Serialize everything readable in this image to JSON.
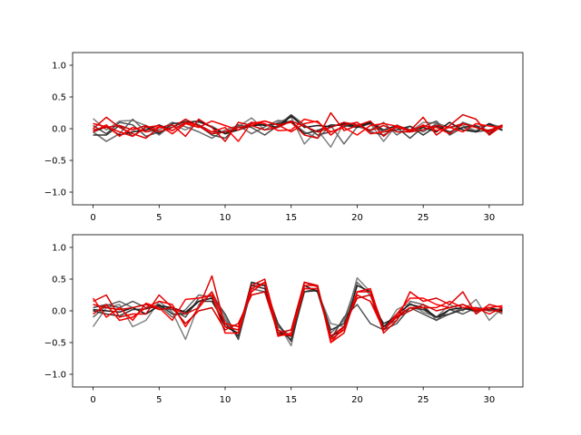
{
  "chart_data": [
    {
      "type": "line",
      "title": "",
      "xlabel": "",
      "ylabel": "",
      "xlim": [
        -1.55,
        32.55
      ],
      "ylim": [
        -1.2,
        1.2
      ],
      "xticks": [
        "0",
        "5",
        "10",
        "15",
        "20",
        "25",
        "30"
      ],
      "xtick_values": [
        0,
        5,
        10,
        15,
        20,
        25,
        30
      ],
      "yticks": [
        "−1.0",
        "−0.5",
        "0.0",
        "0.5",
        "1.0"
      ],
      "ytick_values": [
        -1.0,
        -0.5,
        0.0,
        0.5,
        1.0
      ],
      "grid": false,
      "legend": "none",
      "series": [
        {
          "color": "#808080",
          "values": [
            0.16,
            -0.02,
            0.12,
            0.13,
            0.05,
            -0.1,
            0.06,
            -0.02,
            0.1,
            0.04,
            -0.08,
            0.03,
            0.17,
            -0.02,
            0.1,
            0.18,
            -0.24,
            -0.02,
            -0.29,
            0.09,
            0.05,
            0.08,
            -0.2,
            0.06,
            -0.05,
            0.1,
            0.09,
            0.02,
            0.05,
            -0.03,
            0.08,
            0.02
          ]
        },
        {
          "color": "#666666",
          "values": [
            -0.05,
            -0.2,
            -0.08,
            0.15,
            -0.05,
            -0.02,
            0.1,
            0.03,
            -0.05,
            -0.15,
            -0.02,
            0.05,
            -0.08,
            0.03,
            0.13,
            0.1,
            -0.05,
            -0.15,
            0.05,
            -0.24,
            0.03,
            -0.02,
            0.1,
            -0.1,
            0.04,
            -0.05,
            0.08,
            -0.07,
            0.1,
            0.03,
            0.06,
            -0.03
          ]
        },
        {
          "color": "#4d4d4d",
          "values": [
            0.05,
            -0.08,
            0.1,
            0.06,
            -0.12,
            -0.05,
            0.02,
            0.12,
            0.05,
            -0.1,
            -0.15,
            0.06,
            0.02,
            -0.1,
            0.05,
            0.22,
            0.06,
            -0.1,
            -0.05,
            0.03,
            0.1,
            -0.05,
            -0.1,
            0.02,
            -0.15,
            0.03,
            0.12,
            -0.1,
            0.02,
            -0.05,
            -0.02,
            0.03
          ]
        },
        {
          "color": "#333333",
          "values": [
            -0.1,
            -0.1,
            0.05,
            -0.12,
            0.03,
            -0.08,
            0.08,
            0.1,
            0.06,
            -0.05,
            -0.05,
            -0.02,
            0.1,
            0.05,
            0.08,
            0.12,
            -0.08,
            -0.03,
            0.06,
            0.05,
            0.02,
            0.08,
            -0.05,
            -0.02,
            0.04,
            -0.1,
            0.04,
            -0.05,
            0.02,
            0.05,
            -0.08,
            0.05
          ]
        },
        {
          "color": "#1a1a1a",
          "values": [
            -0.05,
            0.03,
            -0.1,
            -0.05,
            -0.02,
            0.06,
            -0.03,
            0.1,
            0.12,
            0.02,
            -0.08,
            -0.02,
            0.05,
            0.06,
            0.02,
            0.2,
            0.02,
            0.05,
            0.03,
            0.08,
            0.03,
            0.1,
            -0.02,
            0.05,
            -0.02,
            0.02,
            -0.05,
            0.1,
            -0.02,
            -0.05,
            0.08,
            -0.02
          ]
        },
        {
          "color": "#dd0000",
          "values": [
            0.0,
            0.18,
            0.02,
            -0.08,
            -0.15,
            0.02,
            0.06,
            -0.12,
            0.15,
            0.02,
            -0.2,
            0.1,
            0.05,
            0.12,
            0.06,
            0.1,
            -0.1,
            -0.15,
            0.25,
            -0.03,
            0.05,
            0.12,
            -0.12,
            0.05,
            -0.03,
            0.18,
            -0.1,
            0.05,
            0.22,
            0.15,
            -0.1,
            0.05
          ]
        },
        {
          "color": "#ff0000",
          "values": [
            -0.05,
            0.06,
            -0.12,
            0.02,
            -0.05,
            0.03,
            -0.03,
            0.1,
            0.05,
            -0.05,
            0.02,
            -0.2,
            0.1,
            0.08,
            -0.03,
            -0.02,
            0.15,
            0.1,
            -0.05,
            0.02,
            -0.1,
            0.05,
            0.08,
            0.04,
            -0.05,
            0.06,
            -0.03,
            0.02,
            -0.05,
            0.08,
            0.04,
            0.02
          ]
        },
        {
          "color": "#ee0000",
          "values": [
            0.08,
            0.03,
            -0.05,
            -0.12,
            0.02,
            0.05,
            -0.08,
            0.08,
            0.02,
            0.12,
            0.05,
            -0.02,
            0.08,
            0.12,
            0.06,
            -0.05,
            0.08,
            0.12,
            -0.1,
            0.06,
            0.1,
            -0.08,
            -0.05,
            0.02,
            -0.03,
            0.04,
            0.02,
            -0.08,
            0.08,
            0.02,
            -0.05,
            0.04
          ]
        },
        {
          "color": "#cc0000",
          "values": [
            -0.02,
            0.02,
            0.05,
            -0.02,
            0.05,
            -0.05,
            0.02,
            0.15,
            0.04,
            -0.08,
            -0.05,
            0.02,
            0.05,
            -0.02,
            0.02,
            0.12,
            0.04,
            -0.05,
            0.02,
            0.1,
            0.06,
            -0.03,
            0.05,
            -0.05,
            -0.05,
            -0.02,
            0.05,
            0.02,
            0.08,
            0.02,
            -0.03,
            0.06
          ]
        }
      ]
    },
    {
      "type": "line",
      "title": "",
      "xlabel": "",
      "ylabel": "",
      "xlim": [
        -1.55,
        32.55
      ],
      "ylim": [
        -1.2,
        1.2
      ],
      "xticks": [
        "0",
        "5",
        "10",
        "15",
        "20",
        "25",
        "30"
      ],
      "xtick_values": [
        0,
        5,
        10,
        15,
        20,
        25,
        30
      ],
      "yticks": [
        "−1.0",
        "−0.5",
        "0.0",
        "0.5",
        "1.0"
      ],
      "ytick_values": [
        -1.0,
        -0.5,
        0.0,
        0.5,
        1.0
      ],
      "grid": false,
      "legend": "none",
      "series": [
        {
          "color": "#808080",
          "values": [
            -0.25,
            0.05,
            0.1,
            -0.25,
            -0.15,
            0.15,
            -0.02,
            -0.45,
            0.1,
            0.3,
            -0.1,
            -0.45,
            0.4,
            0.4,
            -0.2,
            -0.55,
            0.4,
            0.3,
            -0.2,
            -0.25,
            0.52,
            0.3,
            -0.3,
            0.02,
            0.12,
            -0.02,
            -0.1,
            0.1,
            0.0,
            0.18,
            -0.15,
            0.05
          ]
        },
        {
          "color": "#666666",
          "values": [
            -0.1,
            0.08,
            0.15,
            0.05,
            -0.05,
            0.08,
            -0.1,
            0.02,
            0.25,
            0.22,
            -0.15,
            -0.4,
            0.35,
            0.3,
            -0.25,
            -0.4,
            0.35,
            0.35,
            -0.35,
            -0.15,
            0.45,
            0.25,
            -0.25,
            -0.15,
            0.15,
            0.1,
            -0.15,
            -0.05,
            0.05,
            -0.02,
            0.05,
            -0.05
          ]
        },
        {
          "color": "#4d4d4d",
          "values": [
            0.05,
            0.1,
            0.05,
            0.15,
            0.05,
            0.05,
            0.02,
            -0.1,
            0.2,
            0.25,
            -0.05,
            -0.45,
            0.35,
            0.45,
            -0.3,
            -0.45,
            0.3,
            0.35,
            -0.45,
            -0.1,
            0.1,
            -0.2,
            -0.3,
            -0.2,
            0.05,
            -0.05,
            -0.15,
            0.02,
            -0.05,
            0.05,
            0.02,
            0.03
          ]
        },
        {
          "color": "#333333",
          "values": [
            0.0,
            -0.05,
            -0.08,
            0.02,
            0.03,
            0.1,
            -0.05,
            -0.05,
            0.15,
            0.15,
            -0.2,
            -0.4,
            0.4,
            0.35,
            -0.2,
            -0.48,
            0.3,
            0.32,
            -0.3,
            -0.2,
            0.25,
            0.15,
            -0.2,
            -0.1,
            0.05,
            0.02,
            -0.1,
            -0.05,
            0.02,
            0.05,
            0.0,
            0.02
          ]
        },
        {
          "color": "#1a1a1a",
          "values": [
            0.02,
            0.0,
            -0.02,
            0.05,
            -0.05,
            0.08,
            0.05,
            -0.02,
            0.15,
            0.2,
            -0.25,
            -0.35,
            0.45,
            0.4,
            -0.35,
            -0.4,
            0.4,
            0.3,
            -0.4,
            -0.3,
            0.4,
            0.3,
            -0.25,
            -0.05,
            0.1,
            0.05,
            -0.1,
            0.02,
            0.05,
            0.0,
            0.05,
            0.0
          ]
        },
        {
          "color": "#dd0000",
          "values": [
            0.15,
            0.25,
            -0.1,
            -0.05,
            -0.05,
            0.25,
            0.05,
            -0.05,
            0.05,
            0.55,
            -0.25,
            -0.3,
            0.4,
            0.5,
            -0.3,
            -0.4,
            0.45,
            0.4,
            -0.5,
            -0.35,
            0.3,
            0.3,
            -0.35,
            -0.15,
            0.3,
            0.15,
            0.2,
            0.1,
            0.3,
            -0.05,
            0.1,
            0.05
          ]
        },
        {
          "color": "#ff0000",
          "values": [
            0.2,
            -0.1,
            0.05,
            -0.15,
            0.12,
            0.05,
            -0.15,
            0.18,
            0.2,
            0.25,
            -0.35,
            -0.35,
            0.35,
            0.45,
            -0.4,
            -0.35,
            0.4,
            0.4,
            -0.5,
            -0.25,
            0.25,
            0.15,
            -0.3,
            -0.05,
            0.2,
            0.2,
            0.1,
            0.05,
            0.1,
            0.02,
            0.05,
            0.08
          ]
        },
        {
          "color": "#ee0000",
          "values": [
            -0.05,
            0.1,
            -0.15,
            -0.1,
            0.05,
            0.15,
            0.1,
            -0.25,
            0.05,
            0.3,
            -0.2,
            -0.25,
            0.3,
            0.45,
            -0.38,
            -0.38,
            0.35,
            0.35,
            -0.45,
            -0.3,
            0.3,
            0.35,
            -0.3,
            -0.08,
            0.05,
            0.05,
            0.05,
            0.15,
            0.05,
            0.05,
            -0.05,
            0.05
          ]
        },
        {
          "color": "#cc0000",
          "values": [
            0.1,
            0.05,
            0.02,
            0.05,
            0.1,
            0.02,
            0.05,
            -0.2,
            0.0,
            0.05,
            -0.3,
            -0.2,
            0.25,
            0.3,
            -0.35,
            -0.3,
            0.45,
            0.38,
            -0.4,
            -0.25,
            0.2,
            0.25,
            -0.3,
            -0.1,
            0.0,
            0.1,
            0.0,
            0.05,
            0.1,
            0.0,
            0.02,
            -0.02
          ]
        }
      ]
    }
  ]
}
